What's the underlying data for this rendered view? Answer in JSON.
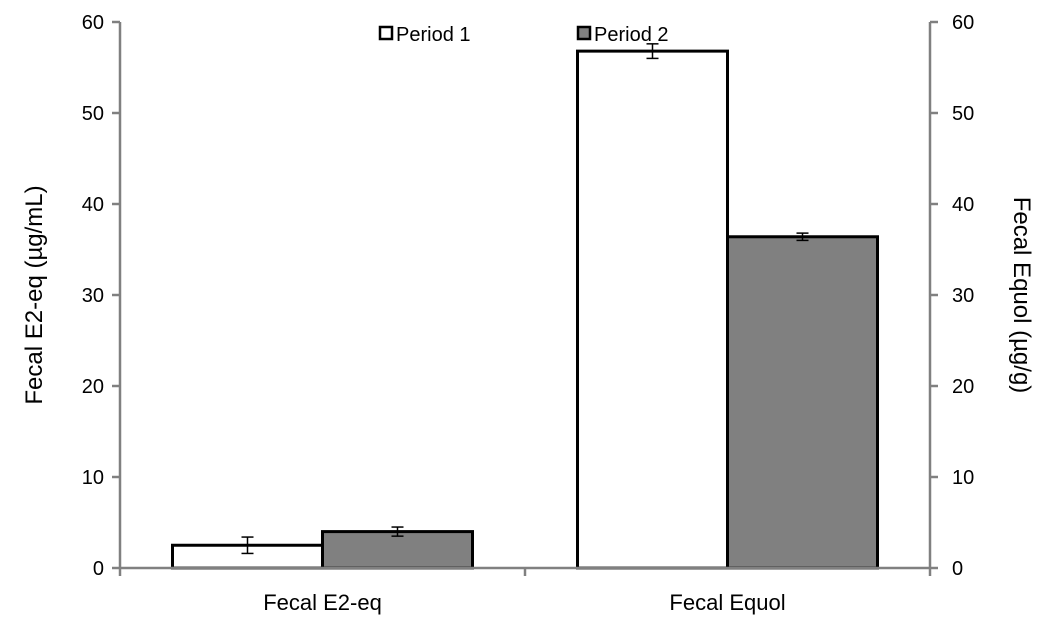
{
  "chart_data": {
    "type": "bar",
    "categories": [
      "Fecal E2-eq",
      "Fecal Equol"
    ],
    "series": [
      {
        "name": "Period 1",
        "values": [
          2.5,
          56.8
        ],
        "errors": [
          0.9,
          0.8
        ],
        "color": "#ffffff"
      },
      {
        "name": "Period 2",
        "values": [
          4.0,
          36.4
        ],
        "errors": [
          0.5,
          0.4
        ],
        "color": "#808080"
      }
    ],
    "ylabel": "Fecal E2-eq (µg/mL)",
    "y2label": "Fecal Equol (µg/g)",
    "ylim": [
      0,
      60
    ],
    "y2lim": [
      0,
      60
    ],
    "yticks": [
      0,
      10,
      20,
      30,
      40,
      50,
      60
    ],
    "grid": false,
    "legend": "top-center",
    "axis_color": "#808080",
    "bar_edge_color": "#000000"
  }
}
